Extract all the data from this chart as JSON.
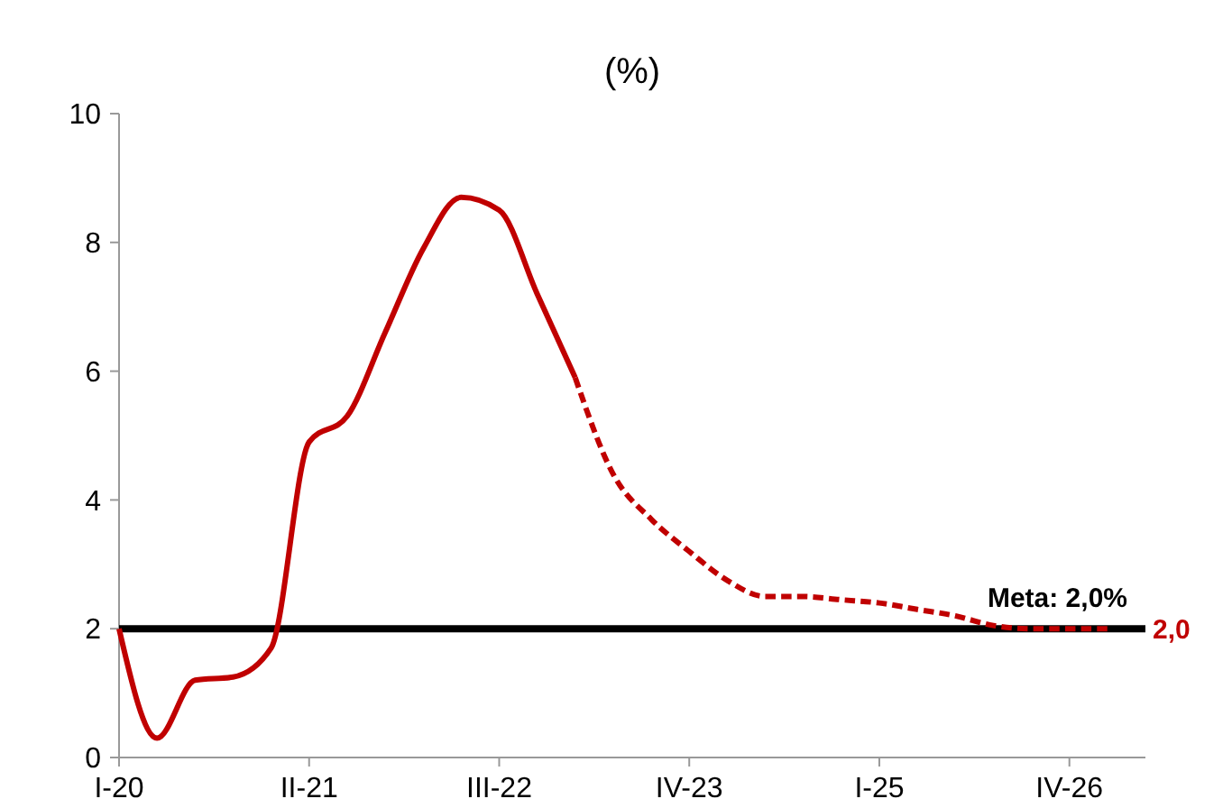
{
  "chart_data": {
    "type": "line",
    "title": "(%)",
    "categories": [
      "I-20",
      null,
      null,
      null,
      null,
      "II-21",
      null,
      null,
      null,
      null,
      "III-22",
      null,
      null,
      null,
      null,
      "IV-23",
      null,
      null,
      null,
      null,
      "I-25",
      null,
      null,
      null,
      null,
      "IV-26",
      null
    ],
    "ylim": [
      0,
      10
    ],
    "yticks": [
      0,
      2,
      4,
      6,
      8,
      10
    ],
    "marker": "none",
    "series": [
      {
        "color": "#c00000",
        "line_style": "solid",
        "values": [
          2.0,
          0.3,
          1.2,
          1.25,
          1.7,
          4.9,
          5.3,
          6.6,
          7.9,
          8.7,
          8.5,
          7.2,
          5.9,
          null,
          null,
          null,
          null,
          null,
          null,
          null,
          null,
          null,
          null,
          null,
          null,
          null,
          null
        ]
      },
      {
        "color": "#c00000",
        "line_style": "dashed",
        "values": [
          null,
          null,
          null,
          null,
          null,
          null,
          null,
          null,
          null,
          null,
          null,
          null,
          5.9,
          4.4,
          3.7,
          3.2,
          2.75,
          2.5,
          2.5,
          2.45,
          2.4,
          2.3,
          2.2,
          2.05,
          2.0,
          2.0,
          2.0
        ],
        "value_labels": [
          null,
          null,
          null,
          null,
          null,
          null,
          null,
          null,
          null,
          null,
          null,
          null,
          null,
          null,
          null,
          null,
          null,
          null,
          null,
          null,
          null,
          null,
          null,
          null,
          null,
          null,
          "2,0"
        ]
      }
    ],
    "ref_lines": [
      {
        "axis": "y",
        "value": 2,
        "label": "Meta: 2,0%",
        "color": "#000000"
      }
    ]
  }
}
